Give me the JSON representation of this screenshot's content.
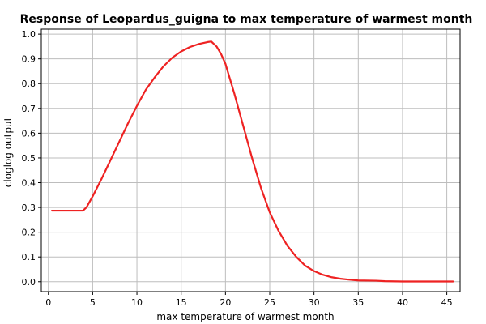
{
  "chart_data": {
    "type": "line",
    "title": "Response of Leopardus_guigna to max temperature of warmest month",
    "xlabel": "max temperature of warmest month",
    "ylabel": "cloglog output",
    "xlim": [
      -0.8,
      46.5
    ],
    "ylim": [
      -0.04,
      1.02
    ],
    "xticks": [
      0,
      5,
      10,
      15,
      20,
      25,
      30,
      35,
      40,
      45
    ],
    "yticks": [
      0.0,
      0.1,
      0.2,
      0.3,
      0.4,
      0.5,
      0.6,
      0.7,
      0.8,
      0.9,
      1.0
    ],
    "ytick_labels": [
      "0.0",
      "0.1",
      "0.2",
      "0.3",
      "0.4",
      "0.5",
      "0.6",
      "0.7",
      "0.8",
      "0.9",
      "1.0"
    ],
    "grid": true,
    "series": [
      {
        "color": "#ee2222",
        "x": [
          0.4,
          2.0,
          3.9,
          4.3,
          5.0,
          6.0,
          7.0,
          8.0,
          9.0,
          10.0,
          11.0,
          12.0,
          13.0,
          14.0,
          15.0,
          16.0,
          17.0,
          18.0,
          18.4,
          19.0,
          19.5,
          20.0,
          20.5,
          21.0,
          22.0,
          23.0,
          24.0,
          25.0,
          26.0,
          27.0,
          28.0,
          29.0,
          30.0,
          31.0,
          32.0,
          33.0,
          34.0,
          35.0,
          37.0,
          38.0,
          40.0,
          42.0,
          44.0,
          45.7
        ],
        "y": [
          0.287,
          0.287,
          0.287,
          0.3,
          0.345,
          0.415,
          0.49,
          0.565,
          0.64,
          0.71,
          0.775,
          0.825,
          0.87,
          0.905,
          0.93,
          0.948,
          0.96,
          0.968,
          0.97,
          0.95,
          0.92,
          0.88,
          0.82,
          0.76,
          0.63,
          0.5,
          0.38,
          0.28,
          0.205,
          0.145,
          0.1,
          0.065,
          0.043,
          0.028,
          0.018,
          0.012,
          0.008,
          0.005,
          0.004,
          0.002,
          0.001,
          0.001,
          0.001,
          0.001
        ]
      }
    ]
  }
}
